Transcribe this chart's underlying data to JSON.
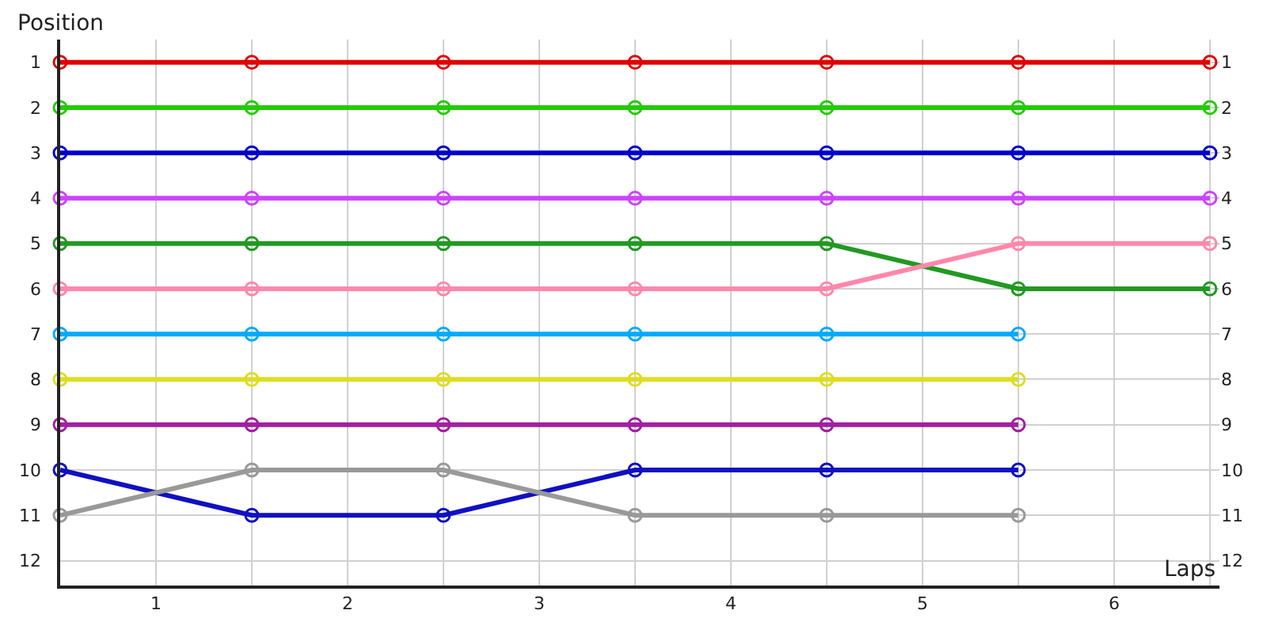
{
  "chart_data": {
    "type": "line",
    "xlabel": "Laps",
    "ylabel": "Position",
    "x": [
      0,
      1,
      2,
      3,
      4,
      5,
      6
    ],
    "series": [
      {
        "color": "#e00000",
        "values": [
          1,
          1,
          1,
          1,
          1,
          1,
          1
        ]
      },
      {
        "color": "#22cc00",
        "values": [
          2,
          2,
          2,
          2,
          2,
          2,
          2
        ]
      },
      {
        "color": "#0000cc",
        "values": [
          3,
          3,
          3,
          3,
          3,
          3,
          3
        ]
      },
      {
        "color": "#cc44ff",
        "values": [
          4,
          4,
          4,
          4,
          4,
          4,
          4
        ]
      },
      {
        "color": "#229922",
        "values": [
          5,
          5,
          5,
          5,
          5,
          6,
          6
        ]
      },
      {
        "color": "#ff88aa",
        "values": [
          6,
          6,
          6,
          6,
          6,
          5,
          5
        ]
      },
      {
        "color": "#00aaff",
        "values": [
          7,
          7,
          7,
          7,
          7,
          7,
          null
        ]
      },
      {
        "color": "#dddd22",
        "values": [
          8,
          8,
          8,
          8,
          8,
          8,
          null
        ]
      },
      {
        "color": "#a020a0",
        "values": [
          9,
          9,
          9,
          9,
          9,
          9,
          null
        ]
      },
      {
        "color": "#1010c0",
        "values": [
          10,
          11,
          11,
          10,
          10,
          10,
          null
        ]
      },
      {
        "color": "#999999",
        "values": [
          11,
          10,
          10,
          11,
          11,
          11,
          null
        ]
      }
    ],
    "xlim": [
      0,
      6.05
    ],
    "xticks": [
      {
        "value": 0.5,
        "label": "1"
      },
      {
        "value": 1,
        "label": null
      },
      {
        "value": 1.5,
        "label": "2"
      },
      {
        "value": 2,
        "label": null
      },
      {
        "value": 2.5,
        "label": "3"
      },
      {
        "value": 3,
        "label": null
      },
      {
        "value": 3.5,
        "label": "4"
      },
      {
        "value": 4,
        "label": null
      },
      {
        "value": 4.5,
        "label": "5"
      },
      {
        "value": 5,
        "label": null
      },
      {
        "value": 5.5,
        "label": "6"
      },
      {
        "value": 6,
        "label": null
      }
    ],
    "ylim": [
      12.55,
      0.5
    ],
    "yticks": [
      1,
      2,
      3,
      4,
      5,
      6,
      7,
      8,
      9,
      10,
      11,
      12
    ],
    "y2lim": [
      12.55,
      0.5
    ],
    "y2ticks": [
      1,
      2,
      3,
      4,
      5,
      6,
      7,
      8,
      9,
      10,
      11,
      12
    ],
    "grid": true,
    "marker": "circle",
    "line_style": "solid"
  }
}
